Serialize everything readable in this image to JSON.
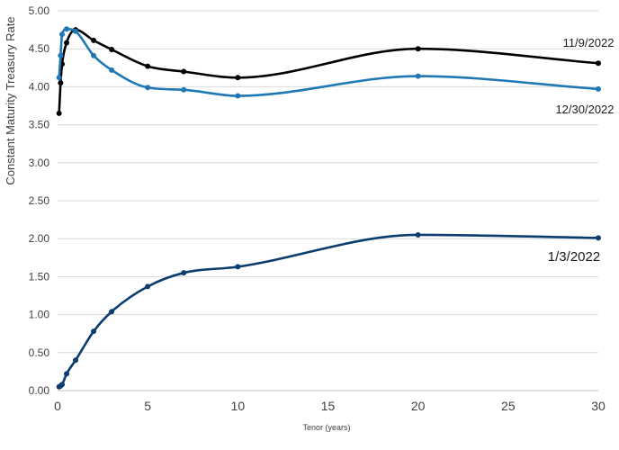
{
  "chart_data": {
    "type": "line",
    "title": "",
    "xlabel": "Tenor (years)",
    "ylabel": "Constant Maturity Treasury Rate",
    "xlim": [
      0,
      30
    ],
    "ylim": [
      0,
      5
    ],
    "x_ticks": [
      0,
      5,
      10,
      15,
      20,
      25,
      30
    ],
    "y_ticks": [
      "0.00",
      "0.50",
      "1.00",
      "1.50",
      "2.00",
      "2.50",
      "3.00",
      "3.50",
      "4.00",
      "4.50",
      "5.00"
    ],
    "grid": "horizontal",
    "legend": "inline labels",
    "series": [
      {
        "name": "1/3/2022",
        "color": "#0b3d6e",
        "x": [
          0.0833,
          0.1667,
          0.25,
          0.5,
          1,
          2,
          3,
          5,
          7,
          10,
          20,
          30
        ],
        "y": [
          0.05,
          0.06,
          0.08,
          0.22,
          0.4,
          0.78,
          1.04,
          1.37,
          1.55,
          1.63,
          2.05,
          2.01
        ]
      },
      {
        "name": "11/9/2022",
        "color": "#000000",
        "x": [
          0.0833,
          0.1667,
          0.25,
          0.5,
          1,
          2,
          3,
          5,
          7,
          10,
          20,
          30
        ],
        "y": [
          3.65,
          4.05,
          4.3,
          4.58,
          4.75,
          4.61,
          4.49,
          4.27,
          4.2,
          4.12,
          4.5,
          4.31
        ]
      },
      {
        "name": "12/30/2022",
        "color": "#1f78b4",
        "x": [
          0.0833,
          0.1667,
          0.25,
          0.5,
          1,
          2,
          3,
          5,
          7,
          10,
          20,
          30
        ],
        "y": [
          4.12,
          4.41,
          4.69,
          4.76,
          4.73,
          4.41,
          4.22,
          3.99,
          3.96,
          3.88,
          4.14,
          3.97
        ]
      }
    ]
  }
}
